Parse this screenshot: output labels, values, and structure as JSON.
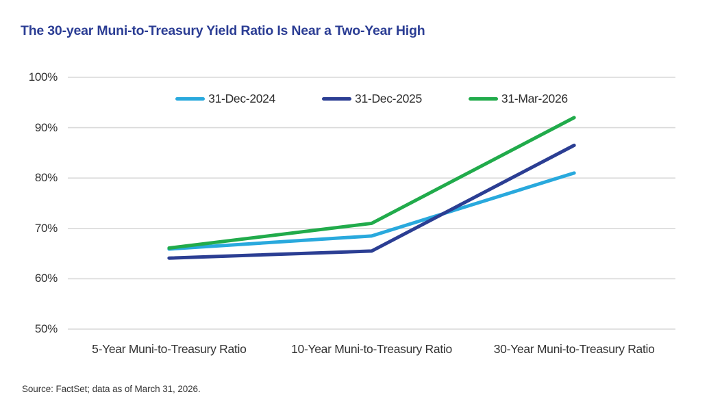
{
  "title": "The 30-year Muni-to-Treasury Yield Ratio Is Near a Two-Year High",
  "title_color": "#2b3d94",
  "source": "Source: FactSet; data as of March 31, 2026.",
  "colors": {
    "grid": "#d9d9d9",
    "axis_text": "#333333"
  },
  "chart_data": {
    "type": "line",
    "title": "The 30-year Muni-to-Treasury Yield Ratio Is Near a Two-Year High",
    "categories": [
      "5-Year Muni-to-Treasury Ratio",
      "10-Year Muni-to-Treasury Ratio",
      "30-Year Muni-to-Treasury Ratio"
    ],
    "series": [
      {
        "name": "31-Dec-2024",
        "color": "#29a9dd",
        "values": [
          65.9,
          68.5,
          81.0
        ]
      },
      {
        "name": "31-Dec-2025",
        "color": "#2b3e93",
        "values": [
          64.1,
          65.5,
          86.5
        ]
      },
      {
        "name": "31-Mar-2026",
        "color": "#21ab4b",
        "values": [
          66.1,
          71.0,
          92.0
        ]
      }
    ],
    "ylim": [
      50,
      100
    ],
    "ytick_values": [
      100,
      90,
      80,
      70,
      60,
      50
    ],
    "ytick_labels": [
      "100%",
      "90%",
      "80%",
      "70%",
      "60%",
      "50%"
    ],
    "grid": "horizontal",
    "legend_position": "top-center",
    "legend_entries": [
      "31-Dec-2024",
      "31-Dec-2025",
      "31-Mar-2026"
    ]
  }
}
